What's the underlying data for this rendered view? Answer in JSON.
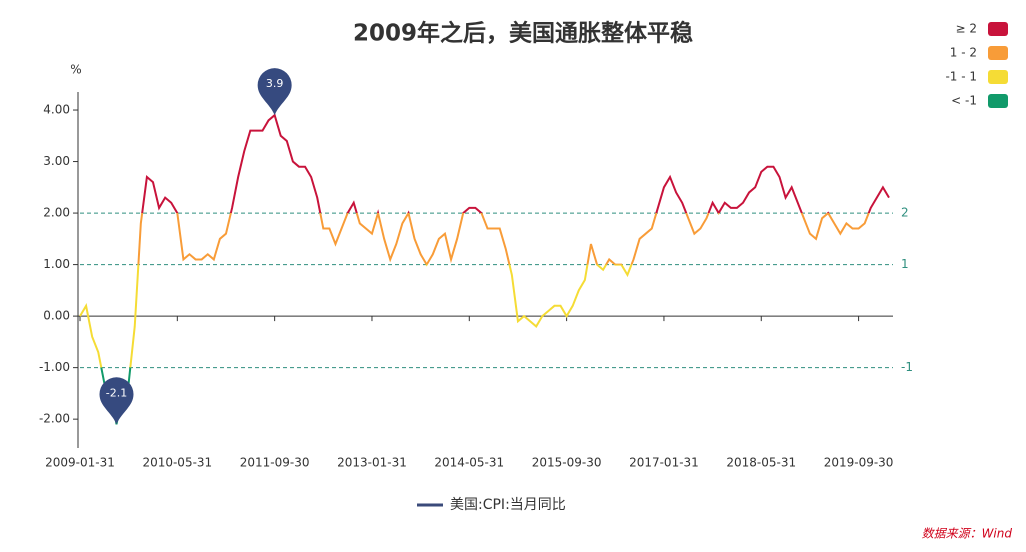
{
  "chart_data": {
    "type": "line",
    "title": "2009年之后，美国通胀整体平稳",
    "y_unit": "%",
    "source": "数据来源：Wind",
    "categories": [
      "2009-01-31",
      null,
      null,
      null,
      null,
      null,
      null,
      null,
      null,
      null,
      null,
      null,
      null,
      null,
      null,
      null,
      "2010-05-31",
      null,
      null,
      null,
      null,
      null,
      null,
      null,
      null,
      null,
      null,
      null,
      null,
      null,
      null,
      null,
      "2011-09-30",
      null,
      null,
      null,
      null,
      null,
      null,
      null,
      null,
      null,
      null,
      null,
      null,
      null,
      null,
      null,
      "2013-01-31",
      null,
      null,
      null,
      null,
      null,
      null,
      null,
      null,
      null,
      null,
      null,
      null,
      null,
      null,
      null,
      "2014-05-31",
      null,
      null,
      null,
      null,
      null,
      null,
      null,
      null,
      null,
      null,
      null,
      null,
      null,
      null,
      null,
      "2015-09-30",
      null,
      null,
      null,
      null,
      null,
      null,
      null,
      null,
      null,
      null,
      null,
      null,
      null,
      null,
      null,
      "2017-01-31",
      null,
      null,
      null,
      null,
      null,
      null,
      null,
      null,
      null,
      null,
      null,
      null,
      null,
      null,
      null,
      "2018-05-31",
      null,
      null,
      null,
      null,
      null,
      null,
      null,
      null,
      null,
      null,
      null,
      null,
      null,
      null,
      null,
      "2019-09-30",
      null,
      null,
      null,
      null,
      null
    ],
    "series": [
      {
        "name": "美国:CPI:当月同比",
        "color": "#3a4a7a",
        "values": [
          0.0,
          0.2,
          -0.4,
          -0.7,
          -1.3,
          -1.4,
          -2.1,
          -1.5,
          -1.3,
          -0.2,
          1.8,
          2.7,
          2.6,
          2.1,
          2.3,
          2.2,
          2.0,
          1.1,
          1.2,
          1.1,
          1.1,
          1.2,
          1.1,
          1.5,
          1.6,
          2.1,
          2.7,
          3.2,
          3.6,
          3.6,
          3.6,
          3.8,
          3.9,
          3.5,
          3.4,
          3.0,
          2.9,
          2.9,
          2.7,
          2.3,
          1.7,
          1.7,
          1.4,
          1.7,
          2.0,
          2.2,
          1.8,
          1.7,
          1.6,
          2.0,
          1.5,
          1.1,
          1.4,
          1.8,
          2.0,
          1.5,
          1.2,
          1.0,
          1.2,
          1.5,
          1.6,
          1.1,
          1.5,
          2.0,
          2.1,
          2.1,
          2.0,
          1.7,
          1.7,
          1.7,
          1.3,
          0.8,
          -0.1,
          0.0,
          -0.1,
          -0.2,
          0.0,
          0.1,
          0.2,
          0.2,
          0.0,
          0.2,
          0.5,
          0.7,
          1.4,
          1.0,
          0.9,
          1.1,
          1.0,
          1.0,
          0.8,
          1.1,
          1.5,
          1.6,
          1.7,
          2.1,
          2.5,
          2.7,
          2.4,
          2.2,
          1.9,
          1.6,
          1.7,
          1.9,
          2.2,
          2.0,
          2.2,
          2.1,
          2.1,
          2.2,
          2.4,
          2.5,
          2.8,
          2.9,
          2.9,
          2.7,
          2.3,
          2.5,
          2.2,
          1.9,
          1.6,
          1.5,
          1.9,
          2.0,
          1.8,
          1.6,
          1.8,
          1.7,
          1.7,
          1.8,
          2.1,
          2.3,
          2.5,
          2.3
        ]
      }
    ],
    "ylim": [
      -2.56,
      4.35
    ],
    "yticks": [
      {
        "value": -2,
        "label": "-2.00"
      },
      {
        "value": -1,
        "label": "-1.00"
      },
      {
        "value": 0,
        "label": "0.00"
      },
      {
        "value": 1,
        "label": "1.00"
      },
      {
        "value": 2,
        "label": "2.00"
      },
      {
        "value": 3,
        "label": "3.00"
      },
      {
        "value": 4,
        "label": "4.00"
      }
    ],
    "mark_lines": [
      2,
      1,
      -1
    ],
    "visual_map": [
      {
        "label": "≥ 2",
        "min": 2,
        "color": "#c8133b"
      },
      {
        "label": "1 - 2",
        "min": 1,
        "max": 2,
        "color": "#f89c38"
      },
      {
        "label": "-1 - 1",
        "min": -1,
        "max": 1,
        "color": "#f5dc35"
      },
      {
        "label": "< -1",
        "max": -1,
        "color": "#119a6a"
      }
    ]
  }
}
